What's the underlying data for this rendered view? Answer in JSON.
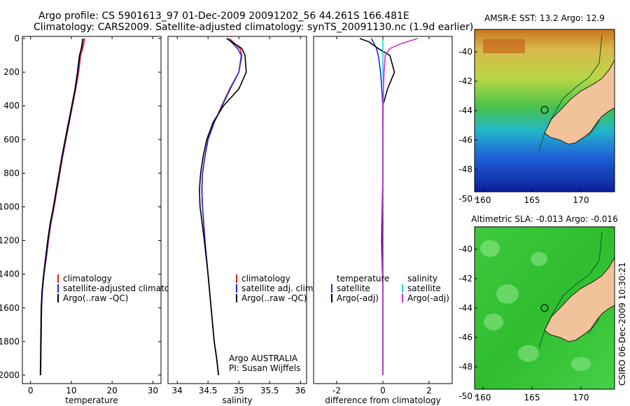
{
  "header": {
    "title_line1": "Argo profile: CS 5901613_97 01-Dec-2009 20091202_56 44.261S 166.481E",
    "title_line2": "Climatology: CARS2009. Satellite-adjusted climatology: synTS_20091130.nc (1.9d earlier)"
  },
  "footer": {
    "credit": "CSIRO 06-Dec-2009 10:30:21"
  },
  "colors": {
    "climatology": "#e02020",
    "satellite": "#1a2cd6",
    "argo": "#000000",
    "satellite_diff_salinity": "#19d6e0",
    "argo_diff_salinity": "#d82ad8"
  },
  "panels": {
    "temperature": {
      "xlabel": "temperature",
      "xticks": [
        "0",
        "10",
        "20",
        "30"
      ],
      "legend": [
        "climatology",
        "satellite-adjusted climatology",
        "Argo(..raw -QC)"
      ]
    },
    "salinity": {
      "xlabel": "salinity",
      "xticks": [
        "34",
        "34.5",
        "35",
        "35.5",
        "36"
      ],
      "legend": [
        "climatology",
        "satellite adj. clim.",
        "Argo(..raw -QC)"
      ],
      "note_line1": "Argo AUSTRALIA",
      "note_line2": "PI: Susan Wijffels"
    },
    "difference": {
      "xlabel": "difference from climatology",
      "xticks": [
        "-2",
        "0",
        "2"
      ],
      "legend_head_temp": "temperature",
      "legend_head_sal": "salinity",
      "legend_temp": [
        "satellite",
        "Argo(-adj)"
      ],
      "legend_sal": [
        "satellite",
        "Argo(-adj)"
      ]
    },
    "depth_ticks": [
      "0",
      "200",
      "400",
      "600",
      "800",
      "1000",
      "1200",
      "1400",
      "1600",
      "1800",
      "2000"
    ],
    "sst_map": {
      "title": "AMSR-E SST: 13.2 Argo: 12.9",
      "lat_ticks": [
        "-40",
        "-42",
        "-44",
        "-46",
        "-48",
        "-50"
      ],
      "lon_ticks": [
        "160",
        "165",
        "170"
      ]
    },
    "sla_map": {
      "title": "Altimetric SLA: -0.013 Argo: -0.016",
      "lat_ticks": [
        "-40",
        "-42",
        "-44",
        "-46",
        "-48",
        "-50"
      ],
      "lon_ticks": [
        "160",
        "165",
        "170"
      ]
    }
  },
  "chart_data": [
    {
      "type": "line",
      "panel": "temperature",
      "xlabel": "temperature",
      "ylabel": "",
      "xlim": [
        -2,
        32
      ],
      "ylim": [
        2050,
        0
      ],
      "series": [
        {
          "name": "climatology",
          "color": "climatology",
          "x": [
            13.3,
            12.9,
            12.3,
            11.8,
            11.1,
            10.3,
            9.5,
            8.7,
            7.9,
            7.2,
            6.5,
            5.8,
            5.0,
            4.4,
            3.9,
            3.3,
            2.9,
            2.7,
            2.6
          ],
          "y": [
            0,
            50,
            100,
            200,
            300,
            400,
            500,
            600,
            700,
            800,
            900,
            1000,
            1100,
            1200,
            1300,
            1400,
            1500,
            1600,
            1800
          ]
        },
        {
          "name": "satellite-adjusted climatology",
          "color": "satellite",
          "x": [
            12.8,
            12.5,
            12.1,
            11.6,
            11.0,
            10.2,
            9.4,
            8.6,
            7.8,
            7.1,
            6.4,
            5.7,
            4.9,
            4.3,
            3.8,
            3.3,
            2.9,
            2.7,
            2.6,
            2.5
          ],
          "y": [
            0,
            50,
            100,
            200,
            300,
            400,
            500,
            600,
            700,
            800,
            900,
            1000,
            1100,
            1200,
            1300,
            1400,
            1500,
            1600,
            1800,
            2000
          ]
        },
        {
          "name": "Argo(..raw -QC)",
          "color": "argo",
          "x": [
            12.9,
            12.6,
            12.0,
            11.5,
            10.9,
            10.1,
            9.3,
            8.5,
            7.7,
            7.0,
            6.3,
            5.6,
            4.8,
            4.2,
            3.7,
            3.2,
            2.8,
            2.6,
            2.5,
            2.4
          ],
          "y": [
            0,
            50,
            100,
            200,
            300,
            400,
            500,
            600,
            700,
            800,
            900,
            1000,
            1100,
            1200,
            1300,
            1400,
            1500,
            1600,
            1800,
            2000
          ]
        }
      ]
    },
    {
      "type": "line",
      "panel": "salinity",
      "xlabel": "salinity",
      "ylabel": "",
      "xlim": [
        33.85,
        36.1
      ],
      "ylim": [
        2050,
        0
      ],
      "series": [
        {
          "name": "climatology",
          "color": "climatology",
          "x": [
            34.85,
            34.93,
            35.02,
            35.05,
            35.0,
            34.85,
            34.72,
            34.6,
            34.5,
            34.45,
            34.41,
            34.4,
            34.41,
            34.45,
            34.5,
            34.55,
            34.6,
            34.64,
            34.67
          ],
          "y": [
            0,
            30,
            60,
            100,
            200,
            300,
            400,
            500,
            600,
            700,
            800,
            900,
            1000,
            1200,
            1400,
            1600,
            1800,
            1900,
            2000
          ]
        },
        {
          "name": "satellite adj. clim.",
          "color": "satellite",
          "x": [
            34.82,
            34.9,
            34.98,
            35.04,
            35.0,
            34.86,
            34.73,
            34.6,
            34.5,
            34.45,
            34.41,
            34.4,
            34.41,
            34.45,
            34.5,
            34.55,
            34.6,
            34.64,
            34.67
          ],
          "y": [
            0,
            30,
            60,
            100,
            200,
            300,
            400,
            500,
            600,
            700,
            800,
            900,
            1000,
            1200,
            1400,
            1600,
            1800,
            1900,
            2000
          ]
        },
        {
          "name": "Argo(..raw -QC)",
          "color": "argo",
          "x": [
            34.8,
            34.93,
            35.05,
            35.1,
            35.12,
            35.0,
            34.75,
            34.58,
            34.48,
            34.42,
            34.38,
            34.36,
            34.37,
            34.44,
            34.5,
            34.55,
            34.6,
            34.64,
            34.67
          ],
          "y": [
            0,
            30,
            60,
            100,
            200,
            300,
            400,
            500,
            600,
            700,
            800,
            900,
            1000,
            1200,
            1400,
            1600,
            1800,
            1900,
            2000
          ]
        }
      ]
    },
    {
      "type": "line",
      "panel": "difference",
      "xlabel": "difference from climatology",
      "ylabel": "",
      "xlim": [
        -3.0,
        3.0
      ],
      "ylim": [
        2050,
        0
      ],
      "series": [
        {
          "name": "temperature satellite",
          "color": "satellite",
          "x": [
            -0.5,
            -0.3,
            -0.2,
            -0.1,
            -0.05,
            0,
            0,
            0,
            0,
            0
          ],
          "y": [
            0,
            50,
            100,
            200,
            300,
            400,
            600,
            1000,
            1500,
            2000
          ]
        },
        {
          "name": "temperature Argo(-adj)",
          "color": "argo",
          "x": [
            -1.0,
            -0.6,
            -0.2,
            0.3,
            0.5,
            0.2,
            0,
            0,
            0,
            -0.05,
            0,
            0
          ],
          "y": [
            0,
            20,
            60,
            100,
            200,
            300,
            400,
            600,
            800,
            1200,
            1500,
            2000
          ]
        },
        {
          "name": "salinity satellite",
          "color": "satellite_diff_salinity",
          "x": [
            0,
            0,
            0,
            0.02,
            0.02,
            0,
            0,
            0,
            0
          ],
          "y": [
            0,
            100,
            200,
            300,
            400,
            600,
            1000,
            1500,
            2000
          ]
        },
        {
          "name": "salinity Argo(-adj)",
          "color": "argo_diff_salinity",
          "x": [
            1.5,
            0.8,
            0.3,
            0.1,
            0.05,
            0,
            0,
            0,
            0
          ],
          "y": [
            0,
            30,
            60,
            100,
            200,
            400,
            1000,
            1500,
            2000
          ]
        }
      ]
    }
  ]
}
